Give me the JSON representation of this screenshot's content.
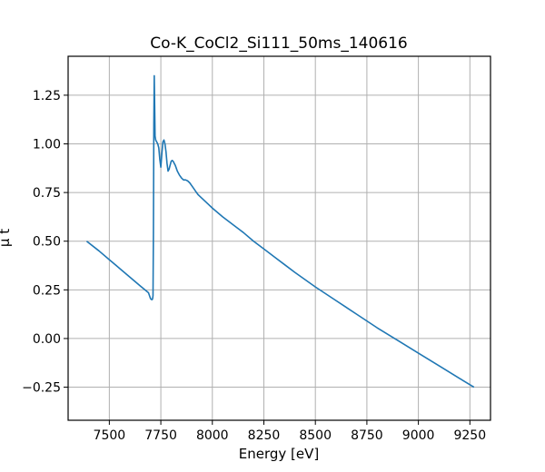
{
  "chart_data": {
    "type": "line",
    "title": "Co-K_CoCl2_Si111_50ms_140616",
    "xlabel": "Energy [eV]",
    "ylabel": "μ t",
    "xlim": [
      7300,
      9350
    ],
    "ylim": [
      -0.42,
      1.45
    ],
    "xticks": [
      7500,
      7750,
      8000,
      8250,
      8500,
      8750,
      9000,
      9250
    ],
    "xtick_labels": [
      "7500",
      "7750",
      "8000",
      "8250",
      "8500",
      "8750",
      "9000",
      "9250"
    ],
    "yticks": [
      -0.25,
      0,
      0.25,
      0.5,
      0.75,
      1.0,
      1.25
    ],
    "ytick_labels": [
      "−0.25",
      "0.00",
      "0.25",
      "0.50",
      "0.75",
      "1.00",
      "1.25"
    ],
    "grid": true,
    "series_color": "#1f77b4",
    "series": [
      {
        "x": [
          7390,
          7450,
          7500,
          7550,
          7600,
          7650,
          7690,
          7700,
          7705,
          7708,
          7710,
          7712,
          7714,
          7716,
          7718,
          7720,
          7722,
          7725,
          7730,
          7735,
          7740,
          7745,
          7750,
          7755,
          7760,
          7765,
          7770,
          7775,
          7780,
          7785,
          7790,
          7795,
          7800,
          7805,
          7810,
          7815,
          7820,
          7825,
          7830,
          7840,
          7850,
          7860,
          7870,
          7880,
          7890,
          7900,
          7910,
          7920,
          7930,
          7940,
          7950,
          7960,
          7980,
          8000,
          8050,
          8100,
          8150,
          8200,
          8250,
          8300,
          8350,
          8400,
          8500,
          8600,
          8700,
          8800,
          8900,
          9000,
          9100,
          9200,
          9270
        ],
        "y": [
          0.5,
          0.45,
          0.405,
          0.36,
          0.315,
          0.27,
          0.235,
          0.205,
          0.2,
          0.2,
          0.205,
          0.22,
          0.55,
          1.1,
          1.35,
          1.2,
          1.04,
          1.02,
          1.01,
          1.0,
          0.98,
          0.92,
          0.88,
          0.95,
          1.01,
          1.02,
          1.0,
          0.96,
          0.9,
          0.86,
          0.87,
          0.89,
          0.91,
          0.915,
          0.91,
          0.9,
          0.89,
          0.875,
          0.86,
          0.84,
          0.825,
          0.815,
          0.815,
          0.81,
          0.8,
          0.785,
          0.77,
          0.755,
          0.74,
          0.73,
          0.72,
          0.71,
          0.69,
          0.67,
          0.625,
          0.585,
          0.545,
          0.5,
          0.46,
          0.42,
          0.38,
          0.34,
          0.265,
          0.195,
          0.125,
          0.055,
          -0.01,
          -0.075,
          -0.14,
          -0.205,
          -0.25
        ]
      }
    ]
  }
}
